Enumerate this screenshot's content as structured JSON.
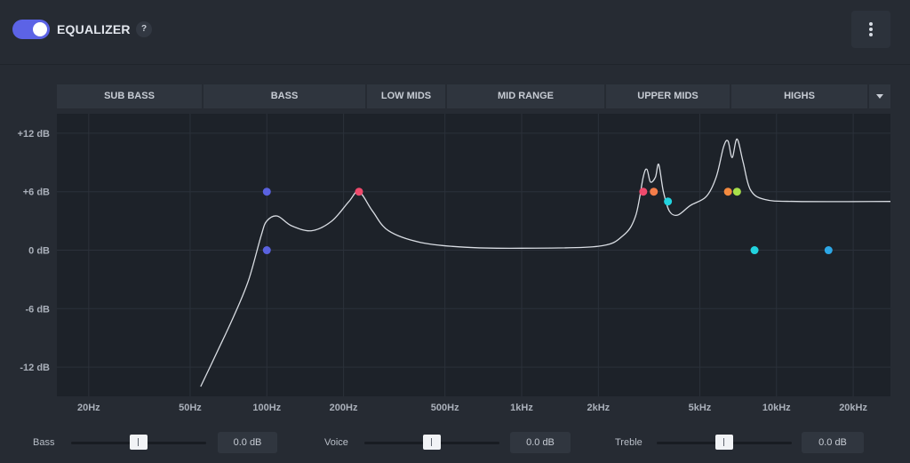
{
  "header": {
    "title": "EQUALIZER",
    "help_label": "?",
    "toggle_on": true
  },
  "bands": [
    {
      "label": "SUB BASS"
    },
    {
      "label": "BASS"
    },
    {
      "label": "LOW MIDS"
    },
    {
      "label": "MID RANGE"
    },
    {
      "label": "UPPER MIDS"
    },
    {
      "label": "HIGHS"
    }
  ],
  "chart_data": {
    "type": "line",
    "x_scale": "log",
    "xlim_hz": [
      15,
      28000
    ],
    "ylim_db": [
      -15,
      14
    ],
    "y_ticks": [
      {
        "value": 12,
        "label": "+12 dB"
      },
      {
        "value": 6,
        "label": "+6 dB"
      },
      {
        "value": 0,
        "label": "0 dB"
      },
      {
        "value": -6,
        "label": "-6 dB"
      },
      {
        "value": -12,
        "label": "-12 dB"
      }
    ],
    "x_ticks": [
      {
        "value": 20,
        "label": "20Hz"
      },
      {
        "value": 50,
        "label": "50Hz"
      },
      {
        "value": 100,
        "label": "100Hz"
      },
      {
        "value": 200,
        "label": "200Hz"
      },
      {
        "value": 500,
        "label": "500Hz"
      },
      {
        "value": 1000,
        "label": "1kHz"
      },
      {
        "value": 2000,
        "label": "2kHz"
      },
      {
        "value": 5000,
        "label": "5kHz"
      },
      {
        "value": 10000,
        "label": "10kHz"
      },
      {
        "value": 20000,
        "label": "20kHz"
      }
    ],
    "response_curve": [
      [
        55,
        -14
      ],
      [
        65,
        -10
      ],
      [
        75,
        -6.5
      ],
      [
        85,
        -3
      ],
      [
        95,
        1.5
      ],
      [
        100,
        3
      ],
      [
        110,
        3.5
      ],
      [
        125,
        2.5
      ],
      [
        150,
        2
      ],
      [
        180,
        3
      ],
      [
        210,
        5
      ],
      [
        230,
        6
      ],
      [
        260,
        4
      ],
      [
        300,
        2
      ],
      [
        400,
        0.8
      ],
      [
        600,
        0.3
      ],
      [
        1000,
        0.2
      ],
      [
        2000,
        0.4
      ],
      [
        2500,
        1.5
      ],
      [
        2800,
        3.5
      ],
      [
        3000,
        7.5
      ],
      [
        3100,
        8.3
      ],
      [
        3200,
        7
      ],
      [
        3350,
        7.5
      ],
      [
        3450,
        8.8
      ],
      [
        3600,
        6
      ],
      [
        3800,
        4
      ],
      [
        4100,
        3.6
      ],
      [
        4600,
        4.6
      ],
      [
        5300,
        5.5
      ],
      [
        5800,
        7.5
      ],
      [
        6200,
        10.6
      ],
      [
        6450,
        11.2
      ],
      [
        6700,
        9.5
      ],
      [
        7000,
        11.4
      ],
      [
        7400,
        9
      ],
      [
        7900,
        6.2
      ],
      [
        9000,
        5.2
      ],
      [
        12000,
        5.0
      ],
      [
        28000,
        5.0
      ]
    ],
    "control_points": [
      {
        "freq_hz": 100,
        "gain_db": 6,
        "color": "#5a62e0"
      },
      {
        "freq_hz": 100,
        "gain_db": 0,
        "color": "#5a62e0"
      },
      {
        "freq_hz": 230,
        "gain_db": 6,
        "color": "#ef4a6c"
      },
      {
        "freq_hz": 3000,
        "gain_db": 6,
        "color": "#ef4a6c"
      },
      {
        "freq_hz": 3300,
        "gain_db": 6,
        "color": "#f47d4a"
      },
      {
        "freq_hz": 3750,
        "gain_db": 5,
        "color": "#22d3df"
      },
      {
        "freq_hz": 6450,
        "gain_db": 6,
        "color": "#f48a3f"
      },
      {
        "freq_hz": 7000,
        "gain_db": 6,
        "color": "#a8e04a"
      },
      {
        "freq_hz": 8200,
        "gain_db": 0,
        "color": "#22d3df"
      },
      {
        "freq_hz": 16000,
        "gain_db": 0,
        "color": "#2da7e6"
      }
    ],
    "grid": true,
    "line_color": "#d9dde3"
  },
  "sliders": [
    {
      "label": "Bass",
      "value_label": "0.0 dB",
      "value_db": 0
    },
    {
      "label": "Voice",
      "value_label": "0.0 dB",
      "value_db": 0
    },
    {
      "label": "Treble",
      "value_label": "0.0 dB",
      "value_db": 0
    }
  ],
  "colors": {
    "accent": "#5c63e6",
    "background": "#262b33",
    "plot_background": "#1d2229"
  }
}
